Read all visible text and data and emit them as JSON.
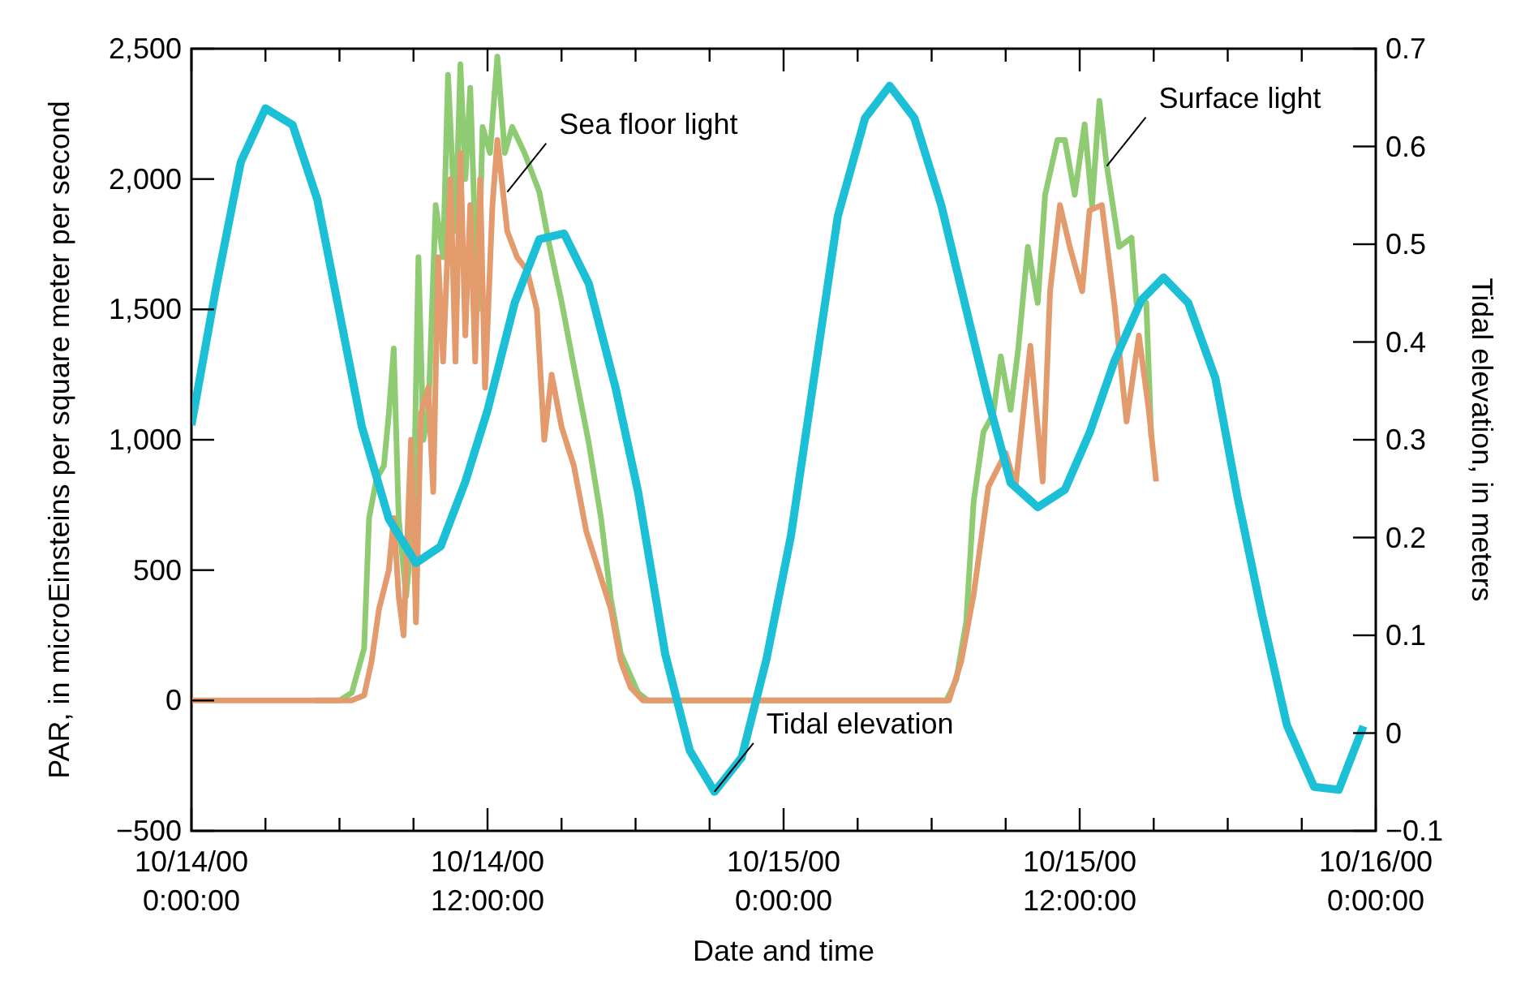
{
  "chart_data": {
    "type": "line",
    "xlabel": "Date and time",
    "ylabel": "PAR, in microEinsteins per square meter per second",
    "y2label": "Tidal elevation, in meters",
    "xlim": [
      "2000-10-14T00:00",
      "2000-10-16T00:00"
    ],
    "xticks": [
      {
        "value": "2000-10-14T00:00",
        "label": "10/14/00\n0:00:00"
      },
      {
        "value": "2000-10-14T03:00",
        "label": null
      },
      {
        "value": "2000-10-14T06:00",
        "label": null
      },
      {
        "value": "2000-10-14T09:00",
        "label": null
      },
      {
        "value": "2000-10-14T12:00",
        "label": "10/14/00\n12:00:00"
      },
      {
        "value": "2000-10-14T15:00",
        "label": null
      },
      {
        "value": "2000-10-14T18:00",
        "label": null
      },
      {
        "value": "2000-10-14T21:00",
        "label": null
      },
      {
        "value": "2000-10-15T00:00",
        "label": "10/15/00\n0:00:00"
      },
      {
        "value": "2000-10-15T03:00",
        "label": null
      },
      {
        "value": "2000-10-15T06:00",
        "label": null
      },
      {
        "value": "2000-10-15T09:00",
        "label": null
      },
      {
        "value": "2000-10-15T12:00",
        "label": "10/15/00\n12:00:00"
      },
      {
        "value": "2000-10-15T15:00",
        "label": null
      },
      {
        "value": "2000-10-15T18:00",
        "label": null
      },
      {
        "value": "2000-10-15T21:00",
        "label": null
      },
      {
        "value": "2000-10-16T00:00",
        "label": "10/16/00\n0:00:00"
      }
    ],
    "ylim": [
      -500,
      2500
    ],
    "yticks": [
      -500,
      0,
      500,
      {
        "value": 1000,
        "label": "1,000"
      },
      {
        "value": 1500,
        "label": "1,500"
      },
      {
        "value": 2000,
        "label": "2,000"
      },
      {
        "value": 2500,
        "label": "2,500"
      }
    ],
    "y2lim": [
      -0.1,
      0.7
    ],
    "y2ticks": [
      -0.1,
      0,
      0.1,
      0.2,
      0.3,
      0.4,
      0.5,
      0.6,
      0.7
    ],
    "marker": "none",
    "line_style": "solid",
    "annotations": [
      {
        "text": "Sea floor light",
        "x": "2000-10-14T12:48",
        "y": 1950
      },
      {
        "text": "Surface light",
        "x": "2000-10-15T13:06",
        "y": 2050
      },
      {
        "text": "Tidal elevation",
        "x": "2000-10-14T21:12",
        "y": -350
      }
    ],
    "series": [
      {
        "color": "#8fcb73",
        "x": [
          "2000-10-14T05:00",
          "2000-10-14T06:00",
          "2000-10-14T06:30",
          "2000-10-14T07:00",
          "2000-10-14T07:12",
          "2000-10-14T07:30",
          "2000-10-14T07:48",
          "2000-10-14T08:00",
          "2000-10-14T08:12",
          "2000-10-14T08:24",
          "2000-10-14T08:42",
          "2000-10-14T09:00",
          "2000-10-14T09:12",
          "2000-10-14T09:24",
          "2000-10-14T09:36",
          "2000-10-14T09:54",
          "2000-10-14T10:12",
          "2000-10-14T10:24",
          "2000-10-14T10:42",
          "2000-10-14T10:54",
          "2000-10-14T11:06",
          "2000-10-14T11:18",
          "2000-10-14T11:36",
          "2000-10-14T11:48",
          "2000-10-14T12:06",
          "2000-10-14T12:24",
          "2000-10-14T12:42",
          "2000-10-14T13:00",
          "2000-10-14T13:30",
          "2000-10-14T14:06",
          "2000-10-14T14:30",
          "2000-10-14T15:00",
          "2000-10-14T15:30",
          "2000-10-14T16:06",
          "2000-10-14T16:36",
          "2000-10-14T17:00",
          "2000-10-14T17:24",
          "2000-10-14T18:06",
          "2000-10-14T18:30",
          "2000-10-14T19:00",
          "2000-10-14T20:00",
          "2000-10-14T21:00",
          "2000-10-14T22:00",
          "2000-10-14T23:00",
          "2000-10-15T00:00",
          "2000-10-15T01:00",
          "2000-10-15T02:00",
          "2000-10-15T03:00",
          "2000-10-15T04:00",
          "2000-10-15T05:00",
          "2000-10-15T06:00",
          "2000-10-15T06:36",
          "2000-10-15T07:00",
          "2000-10-15T07:24",
          "2000-10-15T07:42",
          "2000-10-15T08:06",
          "2000-10-15T08:30",
          "2000-10-15T08:48",
          "2000-10-15T09:12",
          "2000-10-15T09:30",
          "2000-10-15T09:54",
          "2000-10-15T10:18",
          "2000-10-15T10:36",
          "2000-10-15T11:06",
          "2000-10-15T11:24",
          "2000-10-15T11:48",
          "2000-10-15T12:12",
          "2000-10-15T12:30",
          "2000-10-15T12:48",
          "2000-10-15T13:06",
          "2000-10-15T13:36",
          "2000-10-15T14:06",
          "2000-10-15T14:18",
          "2000-10-15T14:42",
          "2000-10-15T14:54"
        ],
        "values": [
          0,
          0,
          30,
          200,
          700,
          850,
          900,
          1100,
          1350,
          700,
          400,
          700,
          1700,
          1000,
          1100,
          1900,
          1700,
          2400,
          1800,
          2440,
          2000,
          2350,
          1500,
          2200,
          2100,
          2470,
          2100,
          2200,
          2100,
          1950,
          1750,
          1530,
          1280,
          990,
          700,
          390,
          180,
          30,
          0,
          0,
          0,
          0,
          0,
          0,
          0,
          0,
          0,
          0,
          0,
          0,
          0,
          0,
          80,
          300,
          760,
          1030,
          1100,
          1320,
          1115,
          1340,
          1740,
          1525,
          1940,
          2150,
          2150,
          1940,
          2210,
          1900,
          2300,
          2050,
          1740,
          1775,
          1525,
          1525,
          1010
        ]
      },
      {
        "color": "#e39a6c",
        "x": [
          "2000-10-14T00:00",
          "2000-10-14T01:00",
          "2000-10-14T02:00",
          "2000-10-14T03:00",
          "2000-10-14T04:00",
          "2000-10-14T05:00",
          "2000-10-14T06:00",
          "2000-10-14T06:30",
          "2000-10-14T07:00",
          "2000-10-14T07:18",
          "2000-10-14T07:36",
          "2000-10-14T08:00",
          "2000-10-14T08:12",
          "2000-10-14T08:24",
          "2000-10-14T08:36",
          "2000-10-14T08:54",
          "2000-10-14T09:06",
          "2000-10-14T09:18",
          "2000-10-14T09:36",
          "2000-10-14T09:48",
          "2000-10-14T10:00",
          "2000-10-14T10:12",
          "2000-10-14T10:30",
          "2000-10-14T10:42",
          "2000-10-14T10:54",
          "2000-10-14T11:06",
          "2000-10-14T11:18",
          "2000-10-14T11:30",
          "2000-10-14T11:42",
          "2000-10-14T11:54",
          "2000-10-14T12:12",
          "2000-10-14T12:24",
          "2000-10-14T12:48",
          "2000-10-14T13:12",
          "2000-10-14T13:36",
          "2000-10-14T14:00",
          "2000-10-14T14:18",
          "2000-10-14T14:36",
          "2000-10-14T15:00",
          "2000-10-14T15:30",
          "2000-10-14T16:00",
          "2000-10-14T16:30",
          "2000-10-14T17:00",
          "2000-10-14T17:24",
          "2000-10-14T17:48",
          "2000-10-14T18:18",
          "2000-10-14T19:00",
          "2000-10-14T20:00",
          "2000-10-14T21:00",
          "2000-10-14T22:00",
          "2000-10-14T23:00",
          "2000-10-15T00:00",
          "2000-10-15T01:00",
          "2000-10-15T02:00",
          "2000-10-15T03:00",
          "2000-10-15T04:00",
          "2000-10-15T05:00",
          "2000-10-15T06:00",
          "2000-10-15T06:42",
          "2000-10-15T07:12",
          "2000-10-15T07:42",
          "2000-10-15T08:18",
          "2000-10-15T09:00",
          "2000-10-15T09:24",
          "2000-10-15T10:00",
          "2000-10-15T10:30",
          "2000-10-15T10:48",
          "2000-10-15T11:12",
          "2000-10-15T11:36",
          "2000-10-15T12:06",
          "2000-10-15T12:24",
          "2000-10-15T12:54",
          "2000-10-15T13:24",
          "2000-10-15T13:54",
          "2000-10-15T14:24",
          "2000-10-15T14:48",
          "2000-10-15T15:06"
        ],
        "values": [
          0,
          0,
          0,
          0,
          0,
          0,
          0,
          0,
          20,
          150,
          350,
          500,
          700,
          400,
          250,
          1000,
          300,
          1100,
          1200,
          800,
          1700,
          1300,
          2000,
          1300,
          2100,
          1400,
          1900,
          1300,
          2000,
          1200,
          1900,
          2150,
          1800,
          1700,
          1650,
          1500,
          1000,
          1250,
          1050,
          900,
          650,
          500,
          350,
          150,
          50,
          0,
          0,
          0,
          0,
          0,
          0,
          0,
          0,
          0,
          0,
          0,
          0,
          0,
          0,
          150,
          405,
          820,
          950,
          820,
          1360,
          840,
          1570,
          1900,
          1740,
          1570,
          1880,
          1900,
          1525,
          1070,
          1400,
          1115,
          840
        ]
      },
      {
        "color": "#1bbfd6",
        "axis": "y2",
        "x": [
          "2000-10-14T00:00",
          "2000-10-14T01:00",
          "2000-10-14T02:00",
          "2000-10-14T03:00",
          "2000-10-14T04:06",
          "2000-10-14T05:06",
          "2000-10-14T06:00",
          "2000-10-14T06:54",
          "2000-10-14T08:00",
          "2000-10-14T09:06",
          "2000-10-14T10:06",
          "2000-10-14T11:06",
          "2000-10-14T12:00",
          "2000-10-14T13:06",
          "2000-10-14T14:06",
          "2000-10-14T15:06",
          "2000-10-14T16:06",
          "2000-10-14T17:12",
          "2000-10-14T18:06",
          "2000-10-14T19:12",
          "2000-10-14T20:12",
          "2000-10-14T21:12",
          "2000-10-14T22:18",
          "2000-10-14T23:18",
          "2000-10-15T00:18",
          "2000-10-15T01:06",
          "2000-10-15T02:12",
          "2000-10-15T03:18",
          "2000-10-15T04:18",
          "2000-10-15T05:18",
          "2000-10-15T06:24",
          "2000-10-15T07:30",
          "2000-10-15T08:18",
          "2000-10-15T09:12",
          "2000-10-15T10:18",
          "2000-10-15T11:24",
          "2000-10-15T12:24",
          "2000-10-15T13:24",
          "2000-10-15T14:30",
          "2000-10-15T15:24",
          "2000-10-15T16:24",
          "2000-10-15T17:30",
          "2000-10-15T18:24",
          "2000-10-15T19:24",
          "2000-10-15T20:24",
          "2000-10-15T21:30",
          "2000-10-15T22:30",
          "2000-10-15T23:30"
        ],
        "values": [
          0.315,
          0.456,
          0.584,
          0.639,
          0.622,
          0.546,
          0.43,
          0.314,
          0.219,
          0.174,
          0.191,
          0.257,
          0.33,
          0.44,
          0.505,
          0.511,
          0.46,
          0.352,
          0.247,
          0.081,
          -0.018,
          -0.06,
          -0.025,
          0.075,
          0.202,
          0.34,
          0.529,
          0.629,
          0.662,
          0.629,
          0.539,
          0.423,
          0.34,
          0.256,
          0.231,
          0.249,
          0.307,
          0.38,
          0.443,
          0.466,
          0.44,
          0.363,
          0.241,
          0.12,
          0.008,
          -0.055,
          -0.058,
          0.007
        ]
      }
    ]
  }
}
